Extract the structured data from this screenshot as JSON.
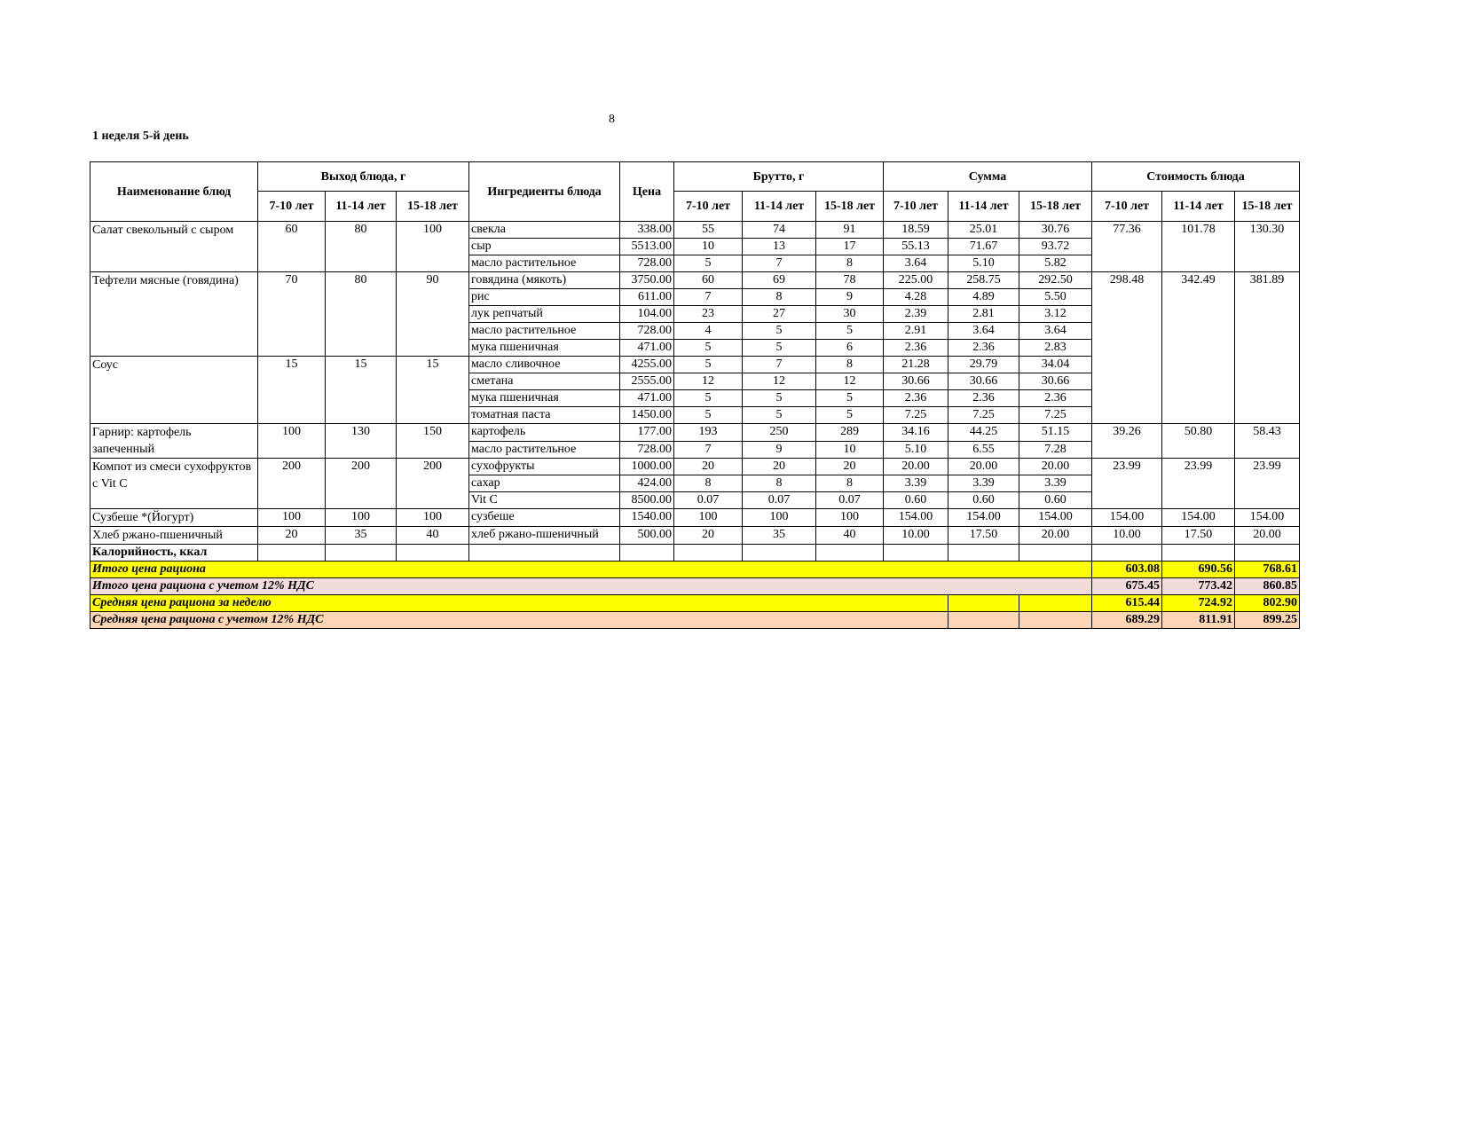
{
  "page_number": "8",
  "title": "1 неделя 5-й день",
  "colors": {
    "yellow": "#ffff00",
    "pink": "#f2dcdb",
    "peach": "#fcd5b4"
  },
  "header": {
    "dish_name": "Наименование блюд",
    "yield": "Выход блюда, г",
    "ingredients": "Ингредиенты блюда",
    "price": "Цена",
    "brutto": "Брутто, г",
    "sum": "Сумма",
    "cost": "Стоимость блюда",
    "ages": [
      "7-10 лет",
      "11-14 лет",
      "15-18 лет"
    ]
  },
  "dishes": [
    {
      "name": "Салат свекольный с сыром",
      "yield": [
        "60",
        "80",
        "100"
      ],
      "cost": [
        "77.36",
        "101.78",
        "130.30"
      ],
      "ingredients": [
        {
          "name": "свекла",
          "price": "338.00",
          "brutto": [
            "55",
            "74",
            "91"
          ],
          "sum": [
            "18.59",
            "25.01",
            "30.76"
          ]
        },
        {
          "name": "сыр",
          "price": "5513.00",
          "brutto": [
            "10",
            "13",
            "17"
          ],
          "sum": [
            "55.13",
            "71.67",
            "93.72"
          ]
        },
        {
          "name": "масло растительное",
          "price": "728.00",
          "brutto": [
            "5",
            "7",
            "8"
          ],
          "sum": [
            "3.64",
            "5.10",
            "5.82"
          ]
        }
      ]
    },
    {
      "name": "Тефтели мясные (говядина)",
      "yield": [
        "70",
        "80",
        "90"
      ],
      "cost": [
        "298.48",
        "342.49",
        "381.89"
      ],
      "cost_span_next": true,
      "ingredients": [
        {
          "name": "говядина (мякоть)",
          "price": "3750.00",
          "brutto": [
            "60",
            "69",
            "78"
          ],
          "sum": [
            "225.00",
            "258.75",
            "292.50"
          ]
        },
        {
          "name": "рис",
          "price": "611.00",
          "brutto": [
            "7",
            "8",
            "9"
          ],
          "sum": [
            "4.28",
            "4.89",
            "5.50"
          ]
        },
        {
          "name": "лук репчатый",
          "price": "104.00",
          "brutto": [
            "23",
            "27",
            "30"
          ],
          "sum": [
            "2.39",
            "2.81",
            "3.12"
          ]
        },
        {
          "name": "масло растительное",
          "price": "728.00",
          "brutto": [
            "4",
            "5",
            "5"
          ],
          "sum": [
            "2.91",
            "3.64",
            "3.64"
          ]
        },
        {
          "name": "мука пшеничная",
          "price": "471.00",
          "brutto": [
            "5",
            "5",
            "6"
          ],
          "sum": [
            "2.36",
            "2.36",
            "2.83"
          ]
        }
      ]
    },
    {
      "name": "Соус",
      "yield": [
        "15",
        "15",
        "15"
      ],
      "cost": null,
      "ingredients": [
        {
          "name": "масло сливочное",
          "price": "4255.00",
          "brutto": [
            "5",
            "7",
            "8"
          ],
          "sum": [
            "21.28",
            "29.79",
            "34.04"
          ]
        },
        {
          "name": "сметана",
          "price": "2555.00",
          "brutto": [
            "12",
            "12",
            "12"
          ],
          "sum": [
            "30.66",
            "30.66",
            "30.66"
          ]
        },
        {
          "name": "мука пшеничная",
          "price": "471.00",
          "brutto": [
            "5",
            "5",
            "5"
          ],
          "sum": [
            "2.36",
            "2.36",
            "2.36"
          ]
        },
        {
          "name": "томатная паста",
          "price": "1450.00",
          "brutto": [
            "5",
            "5",
            "5"
          ],
          "sum": [
            "7.25",
            "7.25",
            "7.25"
          ]
        }
      ]
    },
    {
      "name": "Гарнир:  картофель запеченный",
      "yield": [
        "100",
        "130",
        "150"
      ],
      "cost": [
        "39.26",
        "50.80",
        "58.43"
      ],
      "ingredients": [
        {
          "name": "картофель",
          "price": "177.00",
          "brutto": [
            "193",
            "250",
            "289"
          ],
          "sum": [
            "34.16",
            "44.25",
            "51.15"
          ]
        },
        {
          "name": "масло растительное",
          "price": "728.00",
          "brutto": [
            "7",
            "9",
            "10"
          ],
          "sum": [
            "5.10",
            "6.55",
            "7.28"
          ]
        }
      ]
    },
    {
      "name": "Компот из смеси сухофруктов с Vit C",
      "yield": [
        "200",
        "200",
        "200"
      ],
      "cost": [
        "23.99",
        "23.99",
        "23.99"
      ],
      "ingredients": [
        {
          "name": "сухофрукты",
          "price": "1000.00",
          "brutto": [
            "20",
            "20",
            "20"
          ],
          "sum": [
            "20.00",
            "20.00",
            "20.00"
          ]
        },
        {
          "name": "сахар",
          "price": "424.00",
          "brutto": [
            "8",
            "8",
            "8"
          ],
          "sum": [
            "3.39",
            "3.39",
            "3.39"
          ]
        },
        {
          "name": "Vit C",
          "price": "8500.00",
          "brutto": [
            "0.07",
            "0.07",
            "0.07"
          ],
          "sum": [
            "0.60",
            "0.60",
            "0.60"
          ]
        }
      ]
    },
    {
      "name": "Сузбеше *(Йогурт)",
      "yield": [
        "100",
        "100",
        "100"
      ],
      "cost": [
        "154.00",
        "154.00",
        "154.00"
      ],
      "ingredients": [
        {
          "name": "сузбеше",
          "price": "1540.00",
          "brutto": [
            "100",
            "100",
            "100"
          ],
          "sum": [
            "154.00",
            "154.00",
            "154.00"
          ]
        }
      ]
    },
    {
      "name": "Хлеб ржано-пшеничный",
      "yield": [
        "20",
        "35",
        "40"
      ],
      "cost": [
        "10.00",
        "17.50",
        "20.00"
      ],
      "ingredients": [
        {
          "name": "хлеб ржано-пшеничный",
          "price": "500.00",
          "brutto": [
            "20",
            "35",
            "40"
          ],
          "sum": [
            "10.00",
            "17.50",
            "20.00"
          ]
        }
      ]
    }
  ],
  "calories_label": "Калорийность, ккал",
  "totals": [
    {
      "label": "Итого цена рациона",
      "values": [
        "603.08",
        "690.56",
        "768.61"
      ],
      "color": "#ffff00",
      "split": false
    },
    {
      "label": "Итого цена рациона с учетом 12% НДС",
      "values": [
        "675.45",
        "773.42",
        "860.85"
      ],
      "color": "#f2dcdb",
      "split": false
    },
    {
      "label": "Средняя цена рациона за неделю",
      "values": [
        "615.44",
        "724.92",
        "802.90"
      ],
      "color": "#ffff00",
      "split": true
    },
    {
      "label": "Средняя цена рациона с учетом 12% НДС",
      "values": [
        "689.29",
        "811.91",
        "899.25"
      ],
      "color": "#fcd5b4",
      "split": true
    }
  ]
}
